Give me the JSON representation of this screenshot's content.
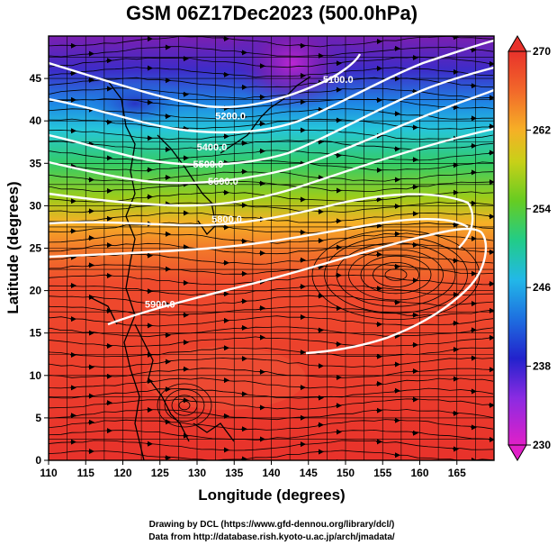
{
  "title": "GSM 06Z17Dec2023 (500.0hPa)",
  "xlabel": "Longitude (degrees)",
  "ylabel": "Latitude  (degrees)",
  "x_ticks": [
    "110",
    "115",
    "120",
    "125",
    "130",
    "135",
    "140",
    "145",
    "150",
    "155",
    "160",
    "165"
  ],
  "y_ticks": [
    "0",
    "5",
    "10",
    "15",
    "20",
    "25",
    "30",
    "35",
    "40",
    "45"
  ],
  "colorbar": {
    "ticks": [
      "230",
      "238",
      "246",
      "254",
      "262",
      "270"
    ],
    "min": 230,
    "max": 270
  },
  "contour_labels": [
    "5100.0",
    "5200.0",
    "5400.0",
    "5500.0",
    "5600.0",
    "5800.0",
    "5900.0"
  ],
  "credits": {
    "line1": "Drawing by DCL (https://www.gfd-dennou.org/library/dcl/)",
    "line2": "Data from http://database.rish.kyoto-u.ac.jp/arch/jmadata/"
  },
  "chart_data": {
    "type": "heatmap",
    "title": "GSM 06Z17Dec2023 (500.0hPa)",
    "xlabel": "Longitude (degrees)",
    "ylabel": "Latitude  (degrees)",
    "xlim": [
      110,
      170
    ],
    "ylim": [
      0,
      50
    ],
    "colorbar_range": [
      230,
      270
    ],
    "grid": true,
    "contours": [
      {
        "label": "5100.0",
        "lon": 149,
        "lat": 44.5
      },
      {
        "label": "5200.0",
        "lon": 134.5,
        "lat": 40.2
      },
      {
        "label": "5400.0",
        "lon": 132,
        "lat": 36.5
      },
      {
        "label": "5500.0",
        "lon": 131.5,
        "lat": 34.5
      },
      {
        "label": "5600.0",
        "lon": 133.5,
        "lat": 32.5
      },
      {
        "label": "5800.0",
        "lon": 134,
        "lat": 28
      },
      {
        "label": "5900.0",
        "lon": 125,
        "lat": 18
      }
    ]
  }
}
